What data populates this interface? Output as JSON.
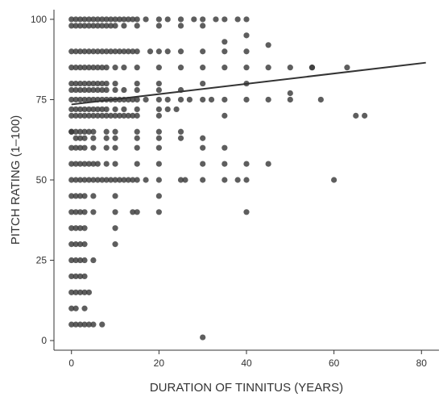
{
  "chart_data": {
    "type": "scatter",
    "xlabel": "DURATION OF TINNITUS (YEARS)",
    "ylabel": "PITCH RATING (1–100)",
    "xlim": [
      -4,
      84
    ],
    "ylim": [
      -3,
      103
    ],
    "x_ticks": [
      0,
      20,
      40,
      60,
      80
    ],
    "y_ticks": [
      0,
      25,
      50,
      75,
      100
    ],
    "x_tick_labels": [
      "0",
      "20",
      "40",
      "60",
      "80"
    ],
    "y_tick_labels": [
      "0",
      "25",
      "50",
      "75",
      "100"
    ],
    "grid": false,
    "point_color": "#3a3a3a",
    "line_color": "#333333",
    "trend_line": {
      "x": [
        0,
        81
      ],
      "y": [
        73.5,
        86.5
      ]
    },
    "points": {
      "x": [
        0,
        1,
        2,
        3,
        4,
        5,
        6,
        7,
        8,
        9,
        10,
        11,
        12,
        13,
        14,
        15,
        17,
        20,
        22,
        25,
        28,
        30,
        33,
        35,
        38,
        40,
        0,
        1,
        2,
        3,
        4,
        5,
        6,
        7,
        8,
        9,
        10,
        12,
        15,
        20,
        25,
        30,
        0,
        1,
        2,
        3,
        4,
        5,
        6,
        7,
        8,
        9,
        10,
        11,
        12,
        13,
        14,
        15,
        18,
        20,
        22,
        25,
        30,
        35,
        40,
        0,
        1,
        2,
        3,
        4,
        5,
        6,
        7,
        8,
        10,
        12,
        15,
        20,
        25,
        30,
        35,
        40,
        45,
        50,
        55,
        63,
        0,
        1,
        2,
        3,
        4,
        5,
        6,
        7,
        8,
        10,
        15,
        20,
        30,
        40,
        0,
        1,
        2,
        3,
        4,
        5,
        6,
        7,
        8,
        10,
        12,
        15,
        20,
        25,
        0,
        1,
        2,
        3,
        4,
        5,
        6,
        7,
        8,
        9,
        10,
        11,
        12,
        13,
        14,
        15,
        17,
        20,
        22,
        25,
        27,
        30,
        32,
        35,
        40,
        45,
        0,
        1,
        2,
        3,
        4,
        5,
        6,
        7,
        8,
        10,
        12,
        15,
        20,
        22,
        24,
        0,
        1,
        2,
        3,
        4,
        5,
        6,
        7,
        8,
        9,
        10,
        11,
        12,
        13,
        14,
        15,
        20,
        35,
        0,
        1,
        2,
        3,
        4,
        5,
        8,
        10,
        15,
        20,
        25,
        0,
        1,
        2,
        3,
        5,
        8,
        10,
        15,
        20,
        25,
        30,
        65,
        67,
        0,
        1,
        2,
        3,
        5,
        8,
        10,
        15,
        20,
        30,
        35,
        0,
        1,
        2,
        3,
        4,
        5,
        6,
        8,
        10,
        15,
        20,
        30,
        35,
        40,
        45,
        0,
        1,
        2,
        3,
        4,
        5,
        6,
        7,
        8,
        9,
        10,
        11,
        12,
        13,
        14,
        15,
        17,
        20,
        25,
        26,
        30,
        35,
        38,
        40,
        60,
        0,
        1,
        2,
        3,
        5,
        10,
        20,
        0,
        1,
        2,
        3,
        5,
        10,
        14,
        15,
        20,
        40,
        0,
        1,
        2,
        3,
        10,
        0,
        1,
        2,
        3,
        10,
        0,
        1,
        2,
        3,
        5,
        0,
        1,
        2,
        3,
        0,
        1,
        2,
        3,
        4,
        0,
        1,
        3,
        0,
        1,
        2,
        3,
        4,
        5,
        7,
        30,
        45,
        50,
        50,
        55,
        57,
        40,
        35
      ],
      "y": [
        100,
        100,
        100,
        100,
        100,
        100,
        100,
        100,
        100,
        100,
        100,
        100,
        100,
        100,
        100,
        100,
        100,
        100,
        100,
        100,
        100,
        100,
        100,
        100,
        100,
        100,
        98,
        98,
        98,
        98,
        98,
        98,
        98,
        98,
        98,
        98,
        98,
        98,
        98,
        98,
        98,
        98,
        90,
        90,
        90,
        90,
        90,
        90,
        90,
        90,
        90,
        90,
        90,
        90,
        90,
        90,
        90,
        90,
        90,
        90,
        90,
        90,
        90,
        90,
        90,
        85,
        85,
        85,
        85,
        85,
        85,
        85,
        85,
        85,
        85,
        85,
        85,
        85,
        85,
        85,
        85,
        85,
        85,
        85,
        85,
        85,
        80,
        80,
        80,
        80,
        80,
        80,
        80,
        80,
        80,
        80,
        80,
        80,
        80,
        80,
        78,
        78,
        78,
        78,
        78,
        78,
        78,
        78,
        78,
        78,
        78,
        78,
        78,
        78,
        75,
        75,
        75,
        75,
        75,
        75,
        75,
        75,
        75,
        75,
        75,
        75,
        75,
        75,
        75,
        75,
        75,
        75,
        75,
        75,
        75,
        75,
        75,
        75,
        75,
        75,
        72,
        72,
        72,
        72,
        72,
        72,
        72,
        72,
        72,
        72,
        72,
        72,
        72,
        72,
        72,
        70,
        70,
        70,
        70,
        70,
        70,
        70,
        70,
        70,
        70,
        70,
        70,
        70,
        70,
        70,
        70,
        70,
        70,
        65,
        65,
        65,
        65,
        65,
        65,
        65,
        65,
        65,
        65,
        65,
        65,
        63,
        63,
        63,
        63,
        63,
        63,
        63,
        63,
        63,
        63,
        70,
        70,
        60,
        60,
        60,
        60,
        60,
        60,
        60,
        60,
        60,
        60,
        60,
        55,
        55,
        55,
        55,
        55,
        55,
        55,
        55,
        55,
        55,
        55,
        55,
        55,
        55,
        55,
        50,
        50,
        50,
        50,
        50,
        50,
        50,
        50,
        50,
        50,
        50,
        50,
        50,
        50,
        50,
        50,
        50,
        50,
        50,
        50,
        50,
        50,
        50,
        50,
        50,
        45,
        45,
        45,
        45,
        45,
        45,
        45,
        40,
        40,
        40,
        40,
        40,
        40,
        40,
        40,
        40,
        40,
        35,
        35,
        35,
        35,
        35,
        30,
        30,
        30,
        30,
        30,
        25,
        25,
        25,
        25,
        25,
        20,
        20,
        20,
        20,
        15,
        15,
        15,
        15,
        15,
        10,
        10,
        10,
        5,
        5,
        5,
        5,
        5,
        5,
        5,
        1,
        92,
        77,
        75,
        85,
        75,
        95,
        93
      ]
    }
  }
}
